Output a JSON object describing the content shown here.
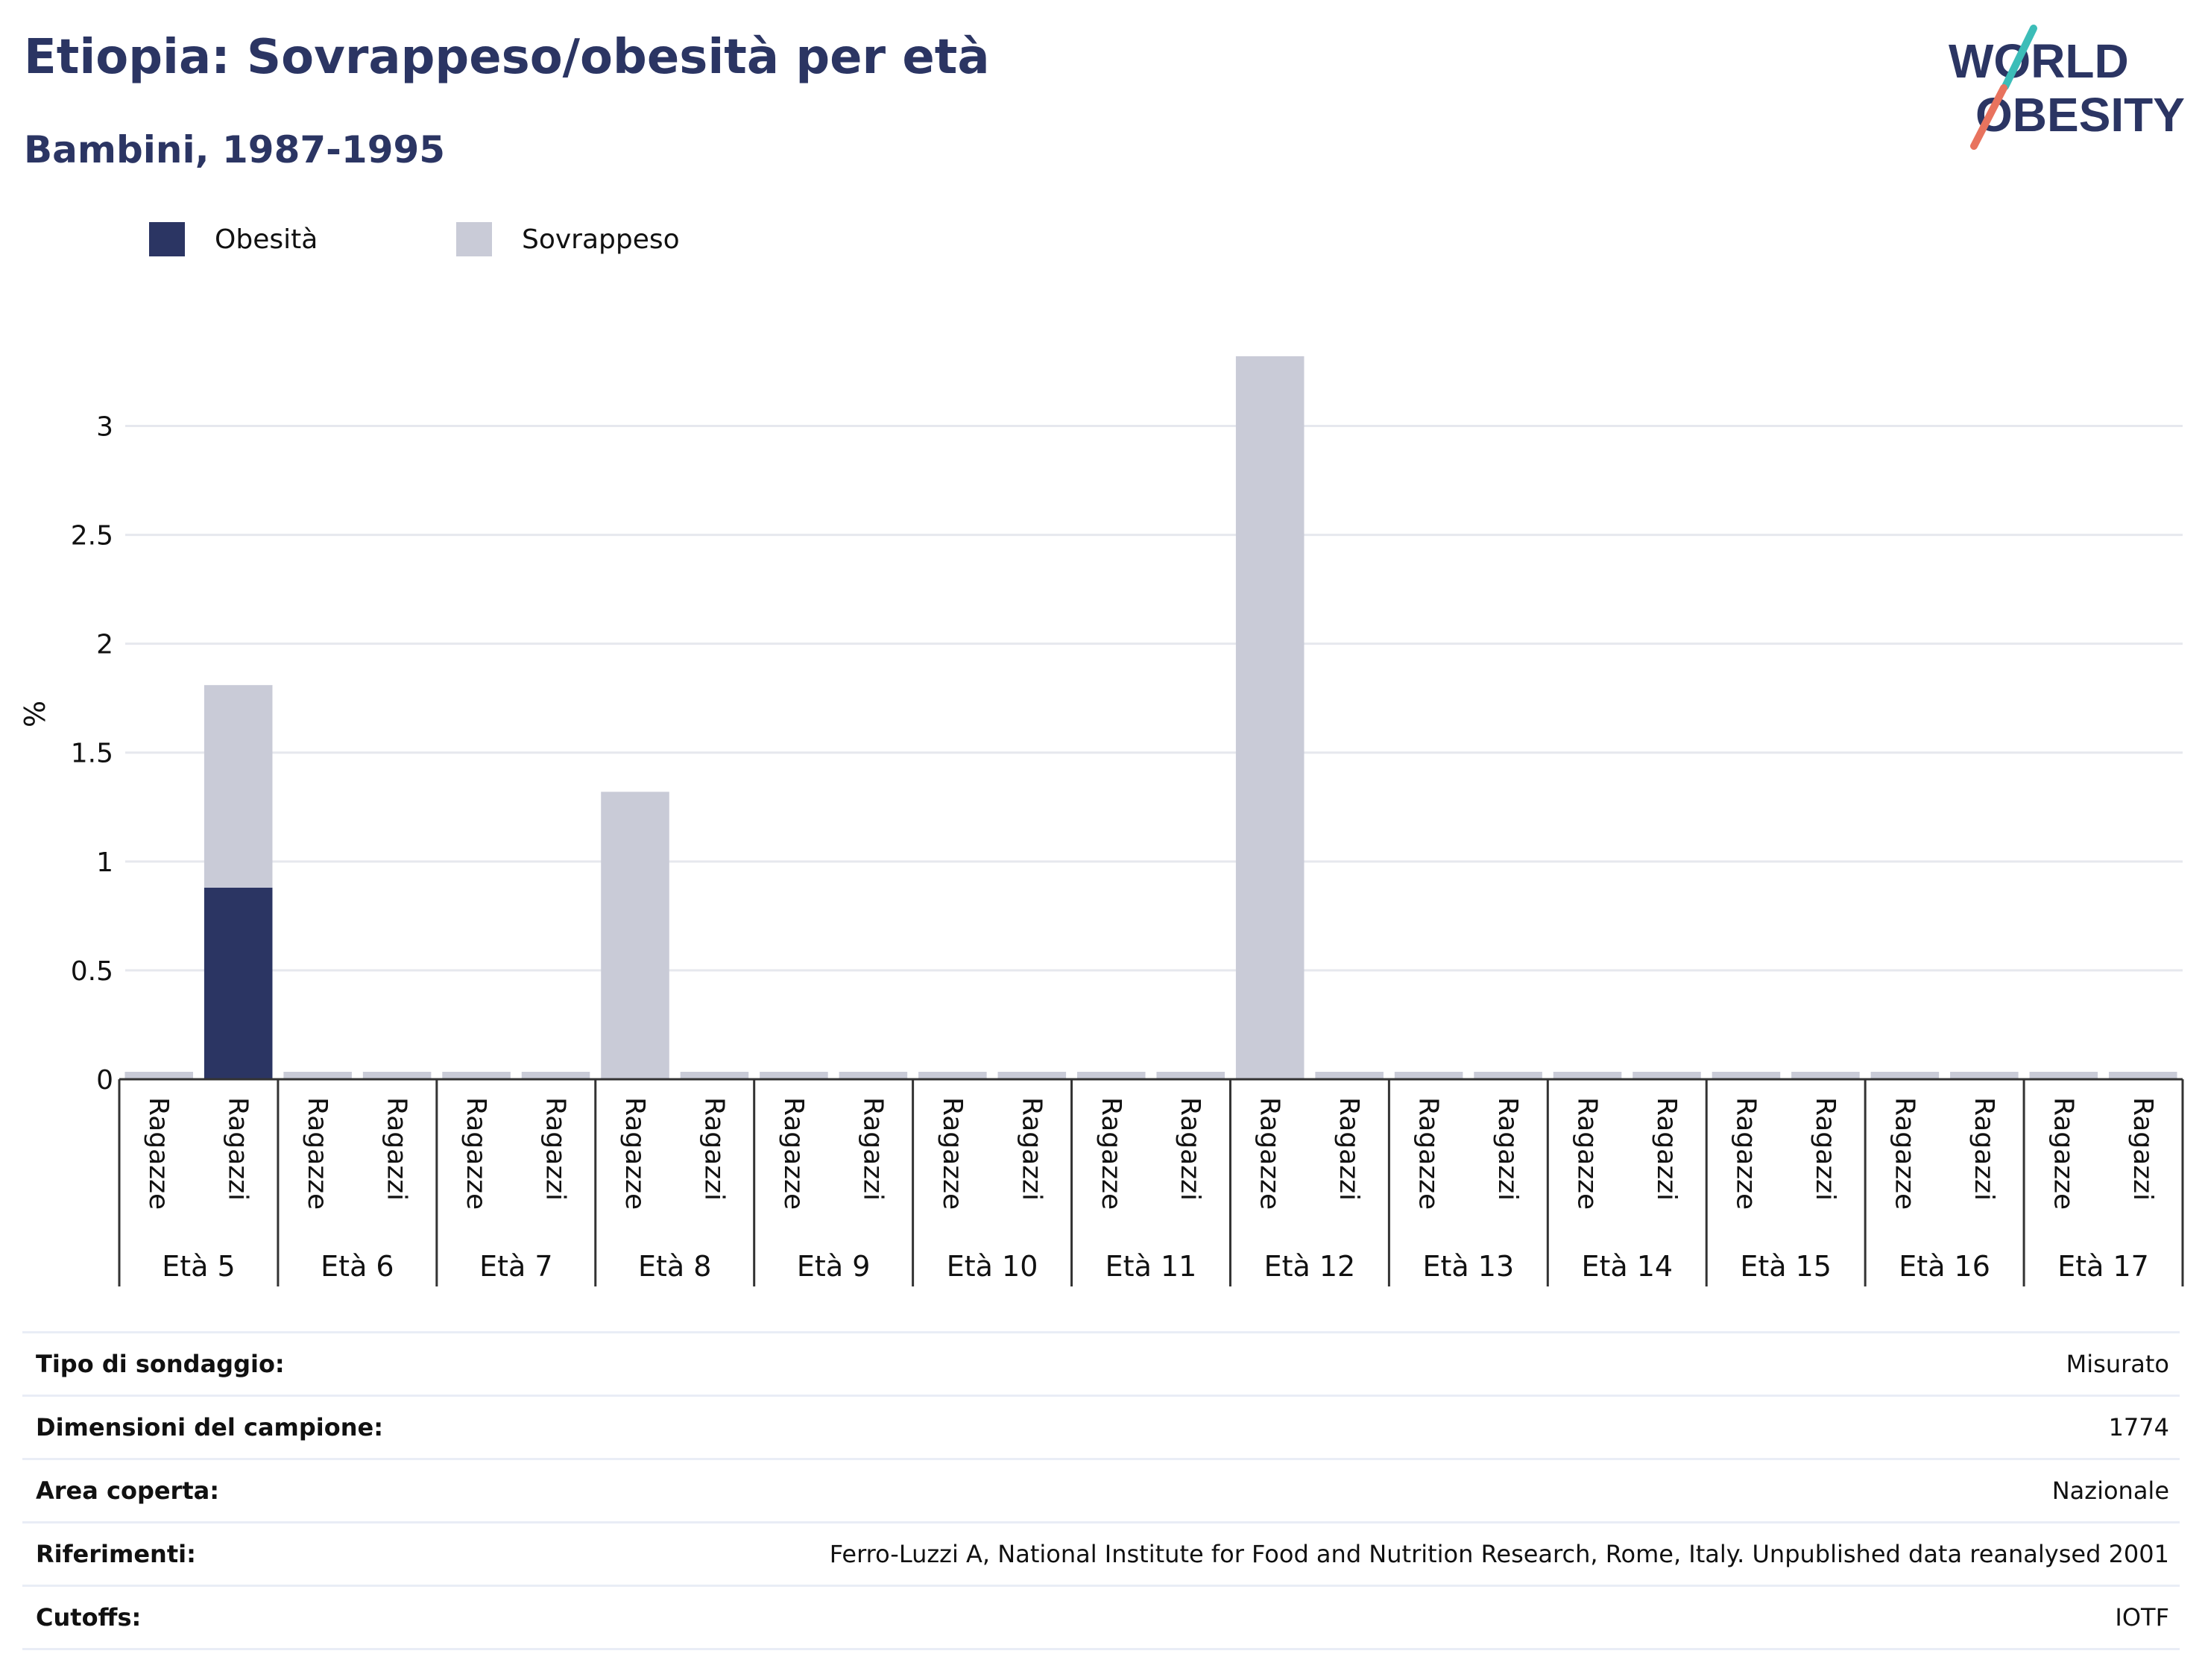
{
  "header": {
    "title": "Etiopia: Sovrappeso/obesità per età",
    "subtitle": "Bambini, 1987-1995"
  },
  "logo": {
    "line1": "WORLD",
    "line2": "OBESITY"
  },
  "colors": {
    "obesity": "#2b3563",
    "overweight": "#c9cbd7",
    "title": "#2b3563",
    "logo_teal": "#3cbdb8",
    "logo_coral": "#e8735e"
  },
  "legend": [
    {
      "label": "Obesità",
      "color": "#2b3563"
    },
    {
      "label": "Sovrappeso",
      "color": "#c9cbd7"
    }
  ],
  "chart_data": {
    "type": "bar",
    "stacked": true,
    "ylabel": "%",
    "ylim": [
      0,
      3.45
    ],
    "yticks": [
      0,
      0.5,
      1,
      1.5,
      2,
      2.5,
      3
    ],
    "ytick_labels": [
      "0",
      "0.5",
      "1",
      "1.5",
      "2",
      "2.5",
      "3"
    ],
    "groups": [
      "Età 5",
      "Età 6",
      "Età 7",
      "Età 8",
      "Età 9",
      "Età 10",
      "Età 11",
      "Età 12",
      "Età 13",
      "Età 14",
      "Età 15",
      "Età 16",
      "Età 17"
    ],
    "subcategories": [
      "Ragazze",
      "Ragazzi"
    ],
    "series": [
      {
        "name": "Obesità",
        "values": [
          [
            0,
            0.88
          ],
          [
            0,
            0
          ],
          [
            0,
            0
          ],
          [
            0,
            0
          ],
          [
            0,
            0
          ],
          [
            0,
            0
          ],
          [
            0,
            0
          ],
          [
            0,
            0
          ],
          [
            0,
            0
          ],
          [
            0,
            0
          ],
          [
            0,
            0
          ],
          [
            0,
            0
          ],
          [
            0,
            0
          ]
        ]
      },
      {
        "name": "Sovrappeso",
        "values": [
          [
            0,
            0.93
          ],
          [
            0,
            0
          ],
          [
            0,
            0
          ],
          [
            1.32,
            0
          ],
          [
            0,
            0
          ],
          [
            0,
            0
          ],
          [
            0,
            0
          ],
          [
            3.32,
            0
          ],
          [
            0,
            0
          ],
          [
            0,
            0
          ],
          [
            0,
            0
          ],
          [
            0,
            0
          ],
          [
            0,
            0
          ]
        ]
      }
    ],
    "grid": true,
    "legend_position": "top-left"
  },
  "details": [
    {
      "label": "Tipo di sondaggio:",
      "value": "Misurato"
    },
    {
      "label": "Dimensioni del campione:",
      "value": "1774"
    },
    {
      "label": "Area coperta:",
      "value": "Nazionale"
    },
    {
      "label": "Riferimenti:",
      "value": "Ferro-Luzzi A, National Institute for Food and Nutrition Research, Rome, Italy. Unpublished data reanalysed 2001"
    },
    {
      "label": "Cutoffs:",
      "value": "IOTF"
    }
  ]
}
